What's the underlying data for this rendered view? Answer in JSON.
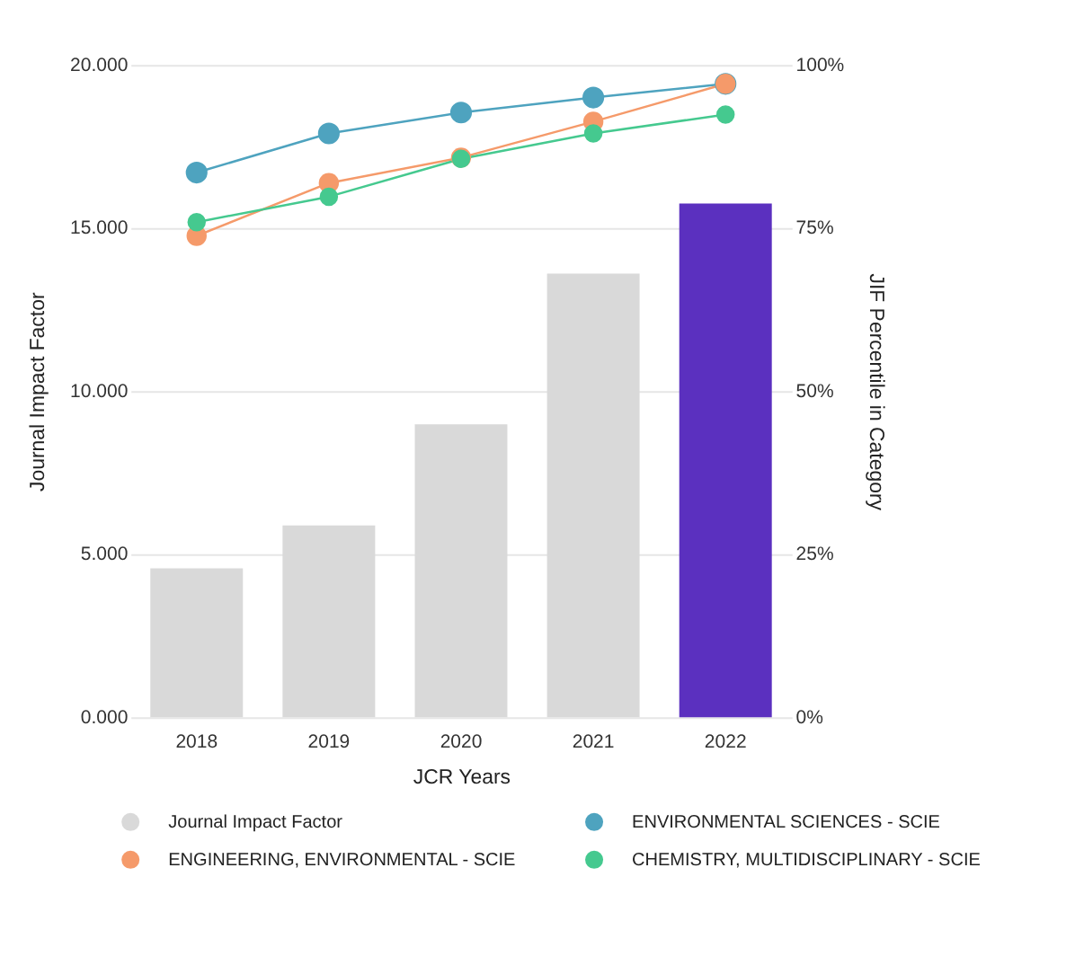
{
  "chart_data": {
    "type": "bar",
    "xlabel": "JCR Years",
    "ylabel": "Journal Impact Factor",
    "y2label": "JIF Percentile in Category",
    "categories": [
      "2018",
      "2019",
      "2020",
      "2021",
      "2022"
    ],
    "series": [
      {
        "name": "Journal Impact Factor",
        "color": "#d9d9d9",
        "colors": [
          "#d9d9d9",
          "#d9d9d9",
          "#d9d9d9",
          "#d9d9d9",
          "#5b30bf"
        ],
        "values": [
          4.57,
          5.88,
          8.98,
          13.6,
          15.75
        ]
      },
      {
        "name": "ENVIRONMENTAL SCIENCES - SCIE",
        "type": "line",
        "axis": "y2",
        "color": "#4ea3bf",
        "values": [
          83.5,
          89.5,
          92.7,
          95.0,
          97.1
        ]
      },
      {
        "name": "ENGINEERING, ENVIRONMENTAL - SCIE",
        "type": "line",
        "axis": "y2",
        "color": "#f59a6a",
        "values": [
          73.8,
          81.9,
          85.8,
          91.3,
          97.1
        ]
      },
      {
        "name": "CHEMISTRY, MULTIDISCIPLINARY - SCIE",
        "type": "line",
        "axis": "y2",
        "color": "#45c98f",
        "values": [
          75.9,
          79.8,
          85.6,
          89.5,
          92.4
        ]
      }
    ],
    "ylim": [
      0,
      20
    ],
    "yticks": [
      {
        "value": 0,
        "label": "0.000"
      },
      {
        "value": 5,
        "label": "5.000"
      },
      {
        "value": 10,
        "label": "10.000"
      },
      {
        "value": 15,
        "label": "15.000"
      },
      {
        "value": 20,
        "label": "20.000"
      }
    ],
    "y2lim": [
      0,
      100
    ],
    "y2ticks": [
      {
        "value": 0,
        "label": "0%"
      },
      {
        "value": 25,
        "label": "25%"
      },
      {
        "value": 50,
        "label": "50%"
      },
      {
        "value": 75,
        "label": "75%"
      },
      {
        "value": 100,
        "label": "100%"
      }
    ],
    "grid": "y",
    "legend": "bottom",
    "marker": "circle",
    "line_style": "solid"
  }
}
